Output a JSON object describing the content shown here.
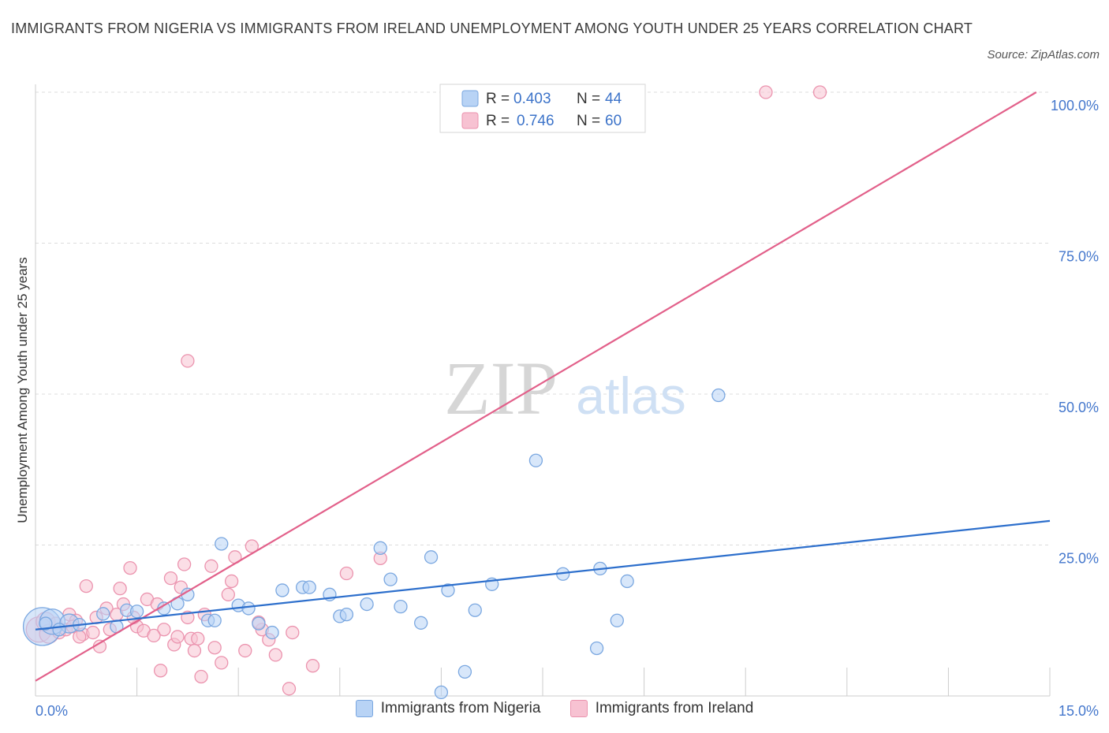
{
  "title": "IMMIGRANTS FROM NIGERIA VS IMMIGRANTS FROM IRELAND UNEMPLOYMENT AMONG YOUTH UNDER 25 YEARS CORRELATION CHART",
  "source": "Source: ZipAtlas.com",
  "watermark": {
    "zip": "ZIP",
    "atlas": "atlas"
  },
  "colors": {
    "nigeria_fill": "#b8d3f5",
    "nigeria_stroke": "#7aa7e0",
    "nigeria_line": "#2d6fcc",
    "ireland_fill": "#f7c2d2",
    "ireland_stroke": "#eb93ae",
    "ireland_line": "#e2608a",
    "axis_text": "#4477cc",
    "grid": "#dcdcdc"
  },
  "legend_top": {
    "rows": [
      {
        "r_label": "R = ",
        "r_value": "0.403",
        "n_label": "N = ",
        "n_value": "44"
      },
      {
        "r_label": "R = ",
        "r_value": "0.746",
        "n_label": "N = ",
        "n_value": "60"
      }
    ]
  },
  "legend_bottom": [
    "Immigrants from Nigeria",
    "Immigrants from Ireland"
  ],
  "chart_data": {
    "type": "scatter",
    "title": "IMMIGRANTS FROM NIGERIA VS IMMIGRANTS FROM IRELAND UNEMPLOYMENT AMONG YOUTH UNDER 25 YEARS CORRELATION CHART",
    "xlabel": "",
    "ylabel": "Unemployment Among Youth under 25 years",
    "xlim": [
      0,
      15
    ],
    "ylim": [
      0,
      100
    ],
    "x_tick_labels": [
      {
        "value": 0,
        "label": "0.0%"
      },
      {
        "value": 15,
        "label": "15.0%"
      }
    ],
    "y_tick_labels": [
      {
        "value": 25,
        "label": "25.0%"
      },
      {
        "value": 50,
        "label": "50.0%"
      },
      {
        "value": 75,
        "label": "75.0%"
      },
      {
        "value": 100,
        "label": "100.0%"
      }
    ],
    "grid": true,
    "series": [
      {
        "name": "Immigrants from Nigeria",
        "R": 0.403,
        "N": 44,
        "trend": {
          "x": [
            0,
            15
          ],
          "y": [
            11.0,
            29.0
          ]
        },
        "points": [
          [
            0.1,
            11.5,
            3
          ],
          [
            0.25,
            12.3,
            2
          ],
          [
            0.5,
            12.0,
            1.5
          ],
          [
            0.65,
            11.8,
            1
          ],
          [
            1.0,
            13.6,
            1
          ],
          [
            1.2,
            11.5,
            1
          ],
          [
            1.35,
            14.2,
            1
          ],
          [
            1.5,
            14.0,
            1
          ],
          [
            1.9,
            14.5,
            1
          ],
          [
            2.1,
            15.3,
            1
          ],
          [
            2.25,
            16.8,
            1
          ],
          [
            2.55,
            12.5,
            1
          ],
          [
            2.65,
            12.5,
            1
          ],
          [
            2.75,
            25.2,
            1
          ],
          [
            3.0,
            15.0,
            1
          ],
          [
            3.15,
            14.5,
            1
          ],
          [
            3.3,
            12.0,
            1
          ],
          [
            3.5,
            10.5,
            1
          ],
          [
            3.65,
            17.5,
            1
          ],
          [
            3.95,
            18.0,
            1
          ],
          [
            4.05,
            18.0,
            1
          ],
          [
            4.35,
            16.8,
            1
          ],
          [
            4.5,
            13.2,
            1
          ],
          [
            4.6,
            13.5,
            1
          ],
          [
            4.9,
            15.2,
            1
          ],
          [
            5.1,
            24.5,
            1
          ],
          [
            5.25,
            19.3,
            1
          ],
          [
            5.4,
            14.8,
            1
          ],
          [
            5.7,
            12.1,
            1
          ],
          [
            5.85,
            23.0,
            1
          ],
          [
            6.0,
            0.6,
            1
          ],
          [
            6.1,
            17.5,
            1
          ],
          [
            6.35,
            4.0,
            1
          ],
          [
            6.5,
            14.2,
            1
          ],
          [
            6.75,
            18.5,
            1
          ],
          [
            7.4,
            39.0,
            1
          ],
          [
            7.8,
            20.2,
            1
          ],
          [
            8.3,
            7.9,
            1
          ],
          [
            8.35,
            21.1,
            1
          ],
          [
            8.6,
            12.5,
            1
          ],
          [
            8.75,
            19.0,
            1
          ],
          [
            10.1,
            49.8,
            1
          ],
          [
            0.15,
            12.0,
            1
          ],
          [
            0.35,
            11.0,
            1
          ]
        ]
      },
      {
        "name": "Immigrants from Ireland",
        "R": 0.746,
        "N": 60,
        "trend": {
          "x": [
            0,
            14.8
          ],
          "y": [
            2.5,
            100.0
          ]
        },
        "points": [
          [
            0.05,
            11.0,
            2
          ],
          [
            0.15,
            12.3,
            1.5
          ],
          [
            0.2,
            10.3,
            1.5
          ],
          [
            0.35,
            10.5,
            1
          ],
          [
            0.45,
            11.0,
            1
          ],
          [
            0.5,
            13.5,
            1
          ],
          [
            0.6,
            12.5,
            1
          ],
          [
            0.7,
            10.2,
            1
          ],
          [
            0.75,
            18.2,
            1
          ],
          [
            0.85,
            10.5,
            1
          ],
          [
            0.95,
            8.2,
            1
          ],
          [
            1.05,
            14.5,
            1
          ],
          [
            1.1,
            11.0,
            1
          ],
          [
            1.2,
            13.5,
            1
          ],
          [
            1.25,
            17.8,
            1
          ],
          [
            1.3,
            15.2,
            1
          ],
          [
            1.4,
            21.2,
            1
          ],
          [
            1.5,
            11.5,
            1
          ],
          [
            1.6,
            10.8,
            1
          ],
          [
            1.65,
            16.0,
            1
          ],
          [
            1.8,
            15.2,
            1
          ],
          [
            1.85,
            4.2,
            1
          ],
          [
            1.9,
            11.0,
            1
          ],
          [
            2.0,
            19.5,
            1
          ],
          [
            2.05,
            8.5,
            1
          ],
          [
            2.15,
            18.0,
            1
          ],
          [
            2.2,
            21.8,
            1
          ],
          [
            2.25,
            13.0,
            1
          ],
          [
            2.3,
            9.5,
            1
          ],
          [
            2.35,
            7.5,
            1
          ],
          [
            2.4,
            9.5,
            1
          ],
          [
            2.45,
            3.2,
            1
          ],
          [
            2.5,
            13.5,
            1
          ],
          [
            2.6,
            21.5,
            1
          ],
          [
            2.65,
            8.0,
            1
          ],
          [
            2.75,
            5.5,
            1
          ],
          [
            2.85,
            16.8,
            1
          ],
          [
            2.9,
            19.0,
            1
          ],
          [
            2.95,
            23.0,
            1
          ],
          [
            3.1,
            7.5,
            1
          ],
          [
            3.2,
            24.8,
            1
          ],
          [
            3.35,
            11.0,
            1
          ],
          [
            3.45,
            9.3,
            1
          ],
          [
            3.55,
            6.8,
            1
          ],
          [
            3.75,
            1.2,
            1
          ],
          [
            3.8,
            10.5,
            1
          ],
          [
            4.1,
            5.0,
            1
          ],
          [
            4.6,
            20.3,
            1
          ],
          [
            5.1,
            22.8,
            1
          ],
          [
            2.25,
            55.5,
            1
          ],
          [
            10.8,
            100,
            1
          ],
          [
            11.6,
            100,
            1
          ],
          [
            0.3,
            12.0,
            1
          ],
          [
            0.55,
            11.5,
            1
          ],
          [
            1.45,
            13.0,
            1
          ],
          [
            1.75,
            10.0,
            1
          ],
          [
            2.1,
            9.8,
            1
          ],
          [
            3.3,
            12.2,
            1
          ],
          [
            0.9,
            13.0,
            1
          ],
          [
            0.65,
            9.8,
            1
          ]
        ]
      }
    ]
  }
}
